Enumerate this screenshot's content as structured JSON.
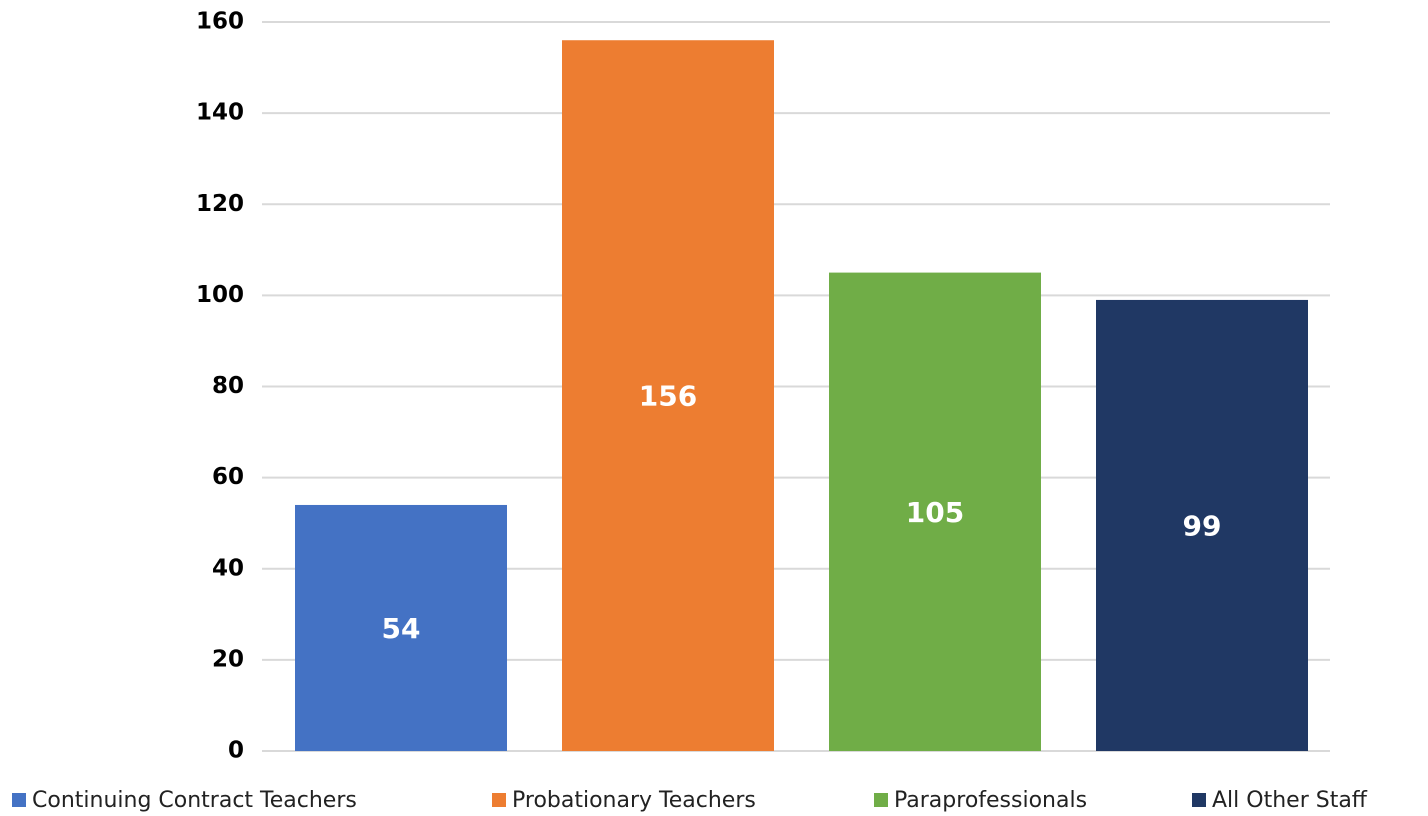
{
  "chart_data": {
    "type": "bar",
    "series": [
      {
        "name": "Continuing Contract Teachers",
        "color": "#4472c4",
        "values": [
          54
        ]
      },
      {
        "name": "Probationary Teachers",
        "color": "#ed7d31",
        "values": [
          156
        ]
      },
      {
        "name": "Paraprofessionals",
        "color": "#70ad47",
        "values": [
          105
        ]
      },
      {
        "name": "All Other Staff",
        "color": "#203864",
        "values": [
          99
        ]
      }
    ],
    "ylim": [
      0,
      160
    ],
    "yticks": [
      0,
      20,
      40,
      60,
      80,
      100,
      120,
      140,
      160
    ],
    "grid": true,
    "legend": "bottom"
  }
}
